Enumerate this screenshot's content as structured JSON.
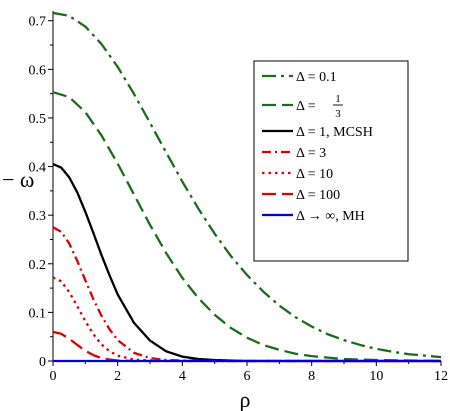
{
  "chart_data": {
    "type": "line",
    "xlabel": "ρ",
    "ylabel": "− ω",
    "xlim": [
      0,
      12
    ],
    "ylim": [
      0,
      0.72
    ],
    "xticks": [
      0,
      2,
      4,
      6,
      8,
      10,
      12
    ],
    "yticks": [
      0,
      0.1,
      0.2,
      0.3,
      0.4,
      0.5,
      0.6,
      0.7
    ],
    "xtick_labels": [
      "0",
      "2",
      "4",
      "6",
      "8",
      "10",
      "12"
    ],
    "ytick_labels": [
      "0",
      "0.1",
      "0.2",
      "0.3",
      "0.4",
      "0.5",
      "0.6",
      "0.7"
    ],
    "grid": false,
    "legend_position": "upper-right",
    "series": [
      {
        "name": "Δ = 0.1",
        "color": "#1a6e1a",
        "dash": "longdashdot",
        "x": [
          0,
          0.5,
          1,
          1.5,
          2,
          2.5,
          3,
          3.5,
          4,
          4.5,
          5,
          5.5,
          6,
          6.5,
          7,
          7.5,
          8,
          8.5,
          9,
          9.5,
          10,
          10.5,
          11,
          11.5,
          12
        ],
        "y": [
          0.716,
          0.71,
          0.688,
          0.652,
          0.605,
          0.55,
          0.49,
          0.429,
          0.369,
          0.313,
          0.262,
          0.216,
          0.177,
          0.143,
          0.114,
          0.09,
          0.071,
          0.055,
          0.043,
          0.033,
          0.025,
          0.019,
          0.014,
          0.011,
          0.008
        ]
      },
      {
        "name": "Δ = 1/3",
        "color": "#1a6e1a",
        "dash": "longdash",
        "x": [
          0,
          0.5,
          1,
          1.5,
          2,
          2.5,
          3,
          3.5,
          4,
          4.5,
          5,
          5.5,
          6,
          6.5,
          7,
          7.5,
          8,
          8.5,
          9,
          10,
          11,
          12
        ],
        "y": [
          0.553,
          0.543,
          0.512,
          0.464,
          0.406,
          0.343,
          0.28,
          0.222,
          0.171,
          0.129,
          0.095,
          0.068,
          0.048,
          0.033,
          0.023,
          0.015,
          0.01,
          0.007,
          0.004,
          0.002,
          0.001,
          0
        ]
      },
      {
        "name": "Δ = 1, MCSH",
        "color": "#000000",
        "dash": "solid",
        "x": [
          0,
          0.25,
          0.5,
          0.75,
          1,
          1.25,
          1.5,
          1.75,
          2,
          2.5,
          3,
          3.5,
          4,
          4.5,
          5,
          5.5,
          6,
          7,
          8,
          12
        ],
        "y": [
          0.405,
          0.398,
          0.378,
          0.347,
          0.307,
          0.263,
          0.218,
          0.176,
          0.137,
          0.079,
          0.042,
          0.02,
          0.009,
          0.004,
          0.002,
          0.001,
          0,
          0,
          0,
          0
        ]
      },
      {
        "name": "Δ = 3",
        "color": "#dd0000",
        "dash": "dashdot",
        "x": [
          0,
          0.25,
          0.5,
          0.75,
          1,
          1.25,
          1.5,
          1.75,
          2,
          2.5,
          3,
          3.5,
          4,
          5,
          12
        ],
        "y": [
          0.275,
          0.266,
          0.242,
          0.206,
          0.166,
          0.127,
          0.093,
          0.065,
          0.043,
          0.017,
          0.006,
          0.002,
          0.001,
          0,
          0
        ]
      },
      {
        "name": "Δ = 10",
        "color": "#dd0000",
        "dash": "dot",
        "x": [
          0,
          0.25,
          0.5,
          0.75,
          1,
          1.25,
          1.5,
          1.75,
          2,
          2.5,
          3,
          3.5,
          4,
          12
        ],
        "y": [
          0.172,
          0.164,
          0.142,
          0.113,
          0.082,
          0.055,
          0.034,
          0.02,
          0.011,
          0.003,
          0.001,
          0,
          0,
          0
        ]
      },
      {
        "name": "Δ = 100",
        "color": "#dd0000",
        "dash": "longdash",
        "x": [
          0,
          0.25,
          0.5,
          0.75,
          1,
          1.25,
          1.5,
          1.75,
          2,
          2.5,
          3,
          12
        ],
        "y": [
          0.06,
          0.056,
          0.046,
          0.033,
          0.021,
          0.012,
          0.006,
          0.003,
          0.001,
          0,
          0,
          0
        ]
      },
      {
        "name": "Δ → ∞, MH",
        "color": "#0000dd",
        "dash": "solid",
        "x": [
          0,
          12
        ],
        "y": [
          0,
          0
        ]
      }
    ]
  },
  "legend": {
    "items": [
      {
        "prefix": "Δ = ",
        "value": "0.1",
        "suffix": ""
      },
      {
        "prefix": "Δ = ",
        "num": "1",
        "den": "3"
      },
      {
        "prefix": "Δ = ",
        "value": "1",
        "suffix": ", MCSH"
      },
      {
        "prefix": "Δ = ",
        "value": "3",
        "suffix": ""
      },
      {
        "prefix": "Δ = ",
        "value": "10",
        "suffix": ""
      },
      {
        "prefix": "Δ = ",
        "value": "100",
        "suffix": ""
      },
      {
        "prefix": "Δ → ",
        "value": "∞",
        "suffix": ", MH"
      }
    ]
  }
}
